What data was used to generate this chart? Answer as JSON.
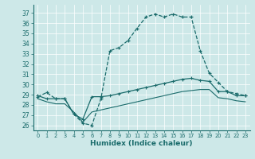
{
  "xlabel": "Humidex (Indice chaleur)",
  "xlim": [
    -0.5,
    23.5
  ],
  "ylim": [
    25.5,
    37.8
  ],
  "yticks": [
    26,
    27,
    28,
    29,
    30,
    31,
    32,
    33,
    34,
    35,
    36,
    37
  ],
  "xticks": [
    0,
    1,
    2,
    3,
    4,
    5,
    6,
    7,
    8,
    9,
    10,
    11,
    12,
    13,
    14,
    15,
    16,
    17,
    18,
    19,
    20,
    21,
    22,
    23
  ],
  "bg_color": "#cde8e8",
  "line_color": "#1a6b6b",
  "series1": [
    28.8,
    29.2,
    28.6,
    28.6,
    27.1,
    26.2,
    26.0,
    28.6,
    33.3,
    33.6,
    34.3,
    35.5,
    36.6,
    36.9,
    36.6,
    36.9,
    36.6,
    36.6,
    33.3,
    31.1,
    30.2,
    29.3,
    29.1,
    28.9
  ],
  "series2": [
    28.9,
    28.6,
    28.6,
    28.6,
    27.1,
    26.6,
    28.8,
    28.8,
    28.9,
    29.1,
    29.3,
    29.5,
    29.7,
    29.9,
    30.1,
    30.3,
    30.5,
    30.6,
    30.4,
    30.3,
    29.3,
    29.3,
    28.9,
    28.9
  ],
  "series3": [
    28.6,
    28.3,
    28.1,
    28.1,
    27.3,
    26.3,
    27.3,
    27.5,
    27.7,
    27.9,
    28.1,
    28.3,
    28.5,
    28.7,
    28.9,
    29.1,
    29.3,
    29.4,
    29.5,
    29.5,
    28.7,
    28.6,
    28.4,
    28.3
  ],
  "ytick_fontsize": 5.5,
  "xtick_fontsize": 4.8,
  "xlabel_fontsize": 6.5
}
